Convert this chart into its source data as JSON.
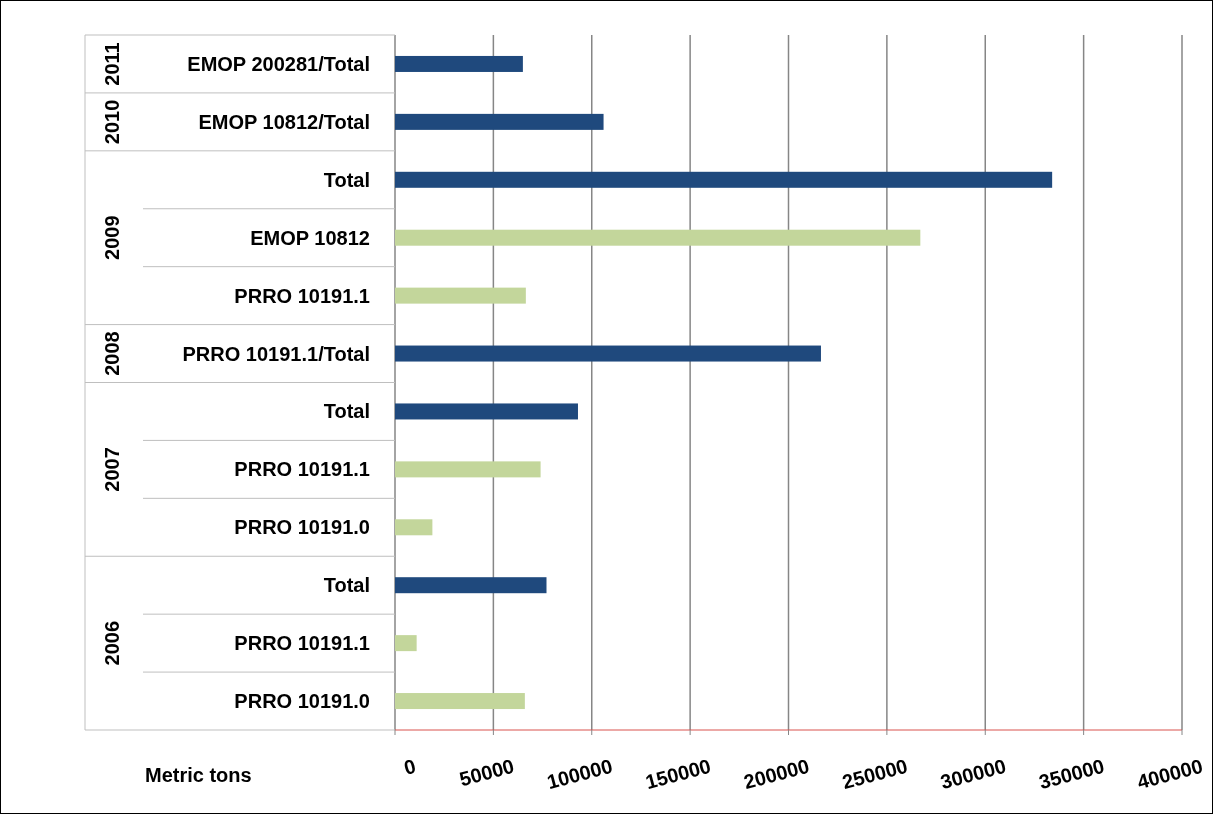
{
  "chart_data": {
    "type": "bar",
    "orientation": "horizontal",
    "xlabel": "Metric tons",
    "categories": [
      "EMOP 200281/Total",
      "EMOP 10812/Total",
      "Total",
      "EMOP 10812",
      "PRRO 10191.1",
      "PRRO 10191.1/Total",
      "Total",
      "PRRO 10191.1",
      "PRRO 10191.0",
      "Total",
      "PRRO 10191.1",
      "PRRO 10191.0"
    ],
    "values": [
      65000,
      106000,
      334000,
      267000,
      66500,
      216500,
      93000,
      74000,
      19000,
      77000,
      11000,
      66000
    ],
    "colors": [
      "#1f497d",
      "#1f497d",
      "#1f497d",
      "#c3d69b",
      "#c3d69b",
      "#1f497d",
      "#1f497d",
      "#c3d69b",
      "#c3d69b",
      "#1f497d",
      "#c3d69b",
      "#c3d69b"
    ],
    "xlim": [
      0,
      400000
    ],
    "xticks": [
      0,
      50000,
      100000,
      150000,
      200000,
      250000,
      300000,
      350000,
      400000
    ],
    "grid": "x",
    "annotations": [
      "2011",
      "2010",
      "2009",
      "2008",
      "2007",
      "2006"
    ]
  }
}
